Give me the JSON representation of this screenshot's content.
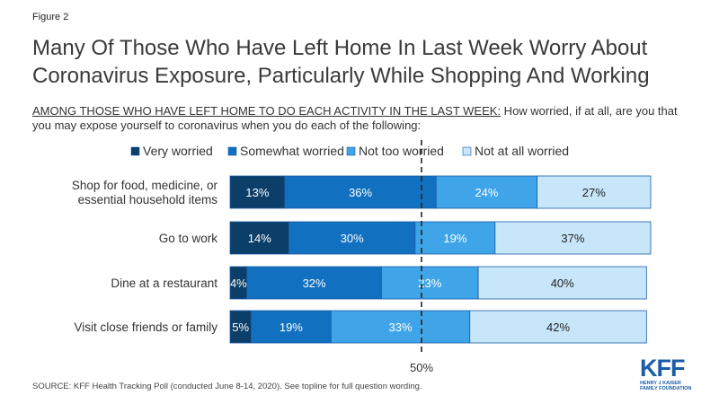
{
  "figure_label": "Figure 2",
  "title_lines": [
    "Many Of Those Who Have Left Home In Last Week Worry About",
    "Coronavirus Exposure, Particularly While Shopping And Working"
  ],
  "subtitle_lead": "AMONG THOSE WHO HAVE LEFT HOME TO DO EACH ACTIVITY IN THE LAST WEEK:",
  "subtitle_rest": " How worried, if at all, are you that you may expose yourself to coronavirus when you do each of the following:",
  "source": "SOURCE: KFF Health Tracking Poll (conducted June 8-14, 2020). See topline for full question wording.",
  "logo": {
    "main": "KFF",
    "line1": "HENRY J KAISER",
    "line2": "FAMILY FOUNDATION"
  },
  "colors": {
    "very": "#0b3e68",
    "somewhat": "#1170c0",
    "not_too": "#3fa4e8",
    "not_at_all": "#c7e6fa",
    "bar_border": "#1b5da8"
  },
  "chart_data": {
    "type": "bar",
    "orientation": "horizontal",
    "stacked": true,
    "categories": [
      [
        "Shop for food, medicine, or",
        "essential household items"
      ],
      [
        "Go to work"
      ],
      [
        "Dine at a restaurant"
      ],
      [
        "Visit close friends or family"
      ]
    ],
    "series": [
      {
        "name": "Very worried",
        "values": [
          13,
          14,
          4,
          5
        ]
      },
      {
        "name": "Somewhat worried",
        "values": [
          36,
          30,
          32,
          19
        ]
      },
      {
        "name": "Not too worried",
        "values": [
          24,
          19,
          23,
          33
        ]
      },
      {
        "name": "Not at all worried",
        "values": [
          27,
          37,
          40,
          42
        ]
      }
    ],
    "data_label_suffix": "%",
    "reference_line": {
      "label": "50%",
      "value": 50,
      "style": "dashed"
    },
    "legend_position": "top"
  }
}
